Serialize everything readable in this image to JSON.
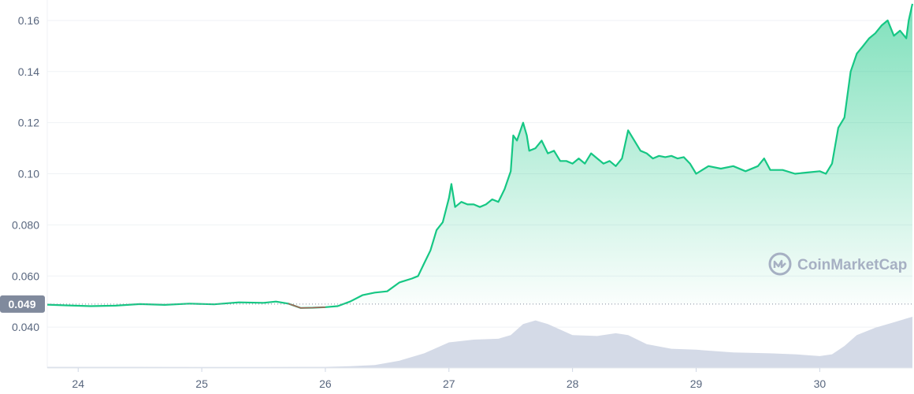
{
  "chart_data": {
    "type": "area",
    "x_ticks": [
      "24",
      "25",
      "26",
      "27",
      "28",
      "29",
      "30"
    ],
    "y_ticks": [
      "0.040",
      "0.060",
      "0.080",
      "0.10",
      "0.12",
      "0.14",
      "0.16"
    ],
    "y_tick_values": [
      0.04,
      0.06,
      0.08,
      0.1,
      0.12,
      0.14,
      0.16
    ],
    "ylim": [
      0.024,
      0.168
    ],
    "xlim": [
      23.75,
      30.75
    ],
    "grid": true,
    "current_price_label": "0.049",
    "current_price": 0.049,
    "series": [
      {
        "type": "line",
        "x": [
          23.75,
          23.9,
          24.1,
          24.3,
          24.5,
          24.7,
          24.9,
          25.1,
          25.3,
          25.5,
          25.6,
          25.7,
          25.8,
          25.9,
          26.0,
          26.1,
          26.2,
          26.3,
          26.4,
          26.5,
          26.6,
          26.7,
          26.75,
          26.8,
          26.85,
          26.9,
          26.95,
          27.0,
          27.02,
          27.05,
          27.1,
          27.15,
          27.2,
          27.25,
          27.3,
          27.35,
          27.4,
          27.45,
          27.5,
          27.52,
          27.55,
          27.6,
          27.63,
          27.65,
          27.7,
          27.75,
          27.8,
          27.85,
          27.9,
          27.95,
          28.0,
          28.05,
          28.1,
          28.15,
          28.2,
          28.25,
          28.3,
          28.35,
          28.4,
          28.45,
          28.5,
          28.55,
          28.6,
          28.65,
          28.7,
          28.75,
          28.8,
          28.85,
          28.9,
          28.95,
          29.0,
          29.1,
          29.2,
          29.3,
          29.4,
          29.5,
          29.55,
          29.6,
          29.7,
          29.8,
          29.9,
          30.0,
          30.05,
          30.1,
          30.15,
          30.2,
          30.25,
          30.3,
          30.35,
          30.4,
          30.45,
          30.5,
          30.55,
          30.6,
          30.65,
          30.7,
          30.72,
          30.75
        ],
        "y": [
          0.0488,
          0.0485,
          0.0482,
          0.0484,
          0.049,
          0.0487,
          0.0492,
          0.0489,
          0.0497,
          0.0495,
          0.05,
          0.0492,
          0.0475,
          0.0476,
          0.0478,
          0.0482,
          0.05,
          0.0525,
          0.0535,
          0.054,
          0.0575,
          0.059,
          0.06,
          0.065,
          0.07,
          0.078,
          0.081,
          0.0905,
          0.096,
          0.087,
          0.089,
          0.088,
          0.088,
          0.087,
          0.088,
          0.09,
          0.089,
          0.094,
          0.101,
          0.115,
          0.113,
          0.12,
          0.115,
          0.109,
          0.11,
          0.113,
          0.108,
          0.109,
          0.105,
          0.105,
          0.104,
          0.106,
          0.104,
          0.108,
          0.106,
          0.104,
          0.105,
          0.103,
          0.106,
          0.117,
          0.113,
          0.109,
          0.108,
          0.106,
          0.107,
          0.1065,
          0.107,
          0.106,
          0.1065,
          0.104,
          0.1,
          0.103,
          0.102,
          0.103,
          0.101,
          0.103,
          0.106,
          0.1015,
          0.1015,
          0.1,
          0.1005,
          0.101,
          0.1,
          0.104,
          0.118,
          0.122,
          0.14,
          0.147,
          0.15,
          0.153,
          0.155,
          0.158,
          0.16,
          0.154,
          0.156,
          0.153,
          0.16,
          0.1665
        ]
      }
    ],
    "volume": {
      "x": [
        23.75,
        24.5,
        25.5,
        26.0,
        26.2,
        26.4,
        26.6,
        26.8,
        27.0,
        27.2,
        27.4,
        27.5,
        27.6,
        27.7,
        27.8,
        28.0,
        28.2,
        28.35,
        28.45,
        28.6,
        28.8,
        29.0,
        29.3,
        29.6,
        29.8,
        30.0,
        30.1,
        30.2,
        30.3,
        30.45,
        30.6,
        30.7,
        30.75
      ],
      "v": [
        0.6,
        0.6,
        0.5,
        0.6,
        1.0,
        1.6,
        4.0,
        8.0,
        14.0,
        15.5,
        16.0,
        18.0,
        24.0,
        26.0,
        24.0,
        18.0,
        17.5,
        19.0,
        18.0,
        13.0,
        10.5,
        10.0,
        8.5,
        8.0,
        7.5,
        6.5,
        7.5,
        12.0,
        18.0,
        22.0,
        25.0,
        27.0,
        28.0
      ]
    }
  },
  "watermark": {
    "text": "CoinMarketCap",
    "icon": "coinmarketcap-logo-icon"
  },
  "colors": {
    "line": "#16c784",
    "line_down": "#ea3943",
    "fill_top": "#16c784",
    "volume": "#cfd6e4",
    "price_label_bg": "#808a9d"
  }
}
